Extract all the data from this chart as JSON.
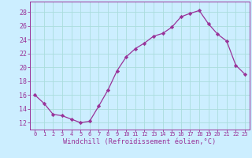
{
  "x": [
    0,
    1,
    2,
    3,
    4,
    5,
    6,
    7,
    8,
    9,
    10,
    11,
    12,
    13,
    14,
    15,
    16,
    17,
    18,
    19,
    20,
    21,
    22,
    23
  ],
  "y": [
    16.0,
    14.8,
    13.2,
    13.0,
    12.5,
    12.0,
    12.2,
    14.4,
    16.7,
    19.5,
    21.5,
    22.7,
    23.5,
    24.5,
    24.9,
    25.8,
    27.3,
    27.8,
    28.2,
    26.3,
    24.8,
    23.8,
    20.3,
    19.0
  ],
  "line_color": "#993399",
  "marker": "D",
  "marker_size": 2.2,
  "bg_color": "#cceeff",
  "grid_color": "#aadddd",
  "xlabel": "Windchill (Refroidissement éolien,°C)",
  "xlabel_color": "#993399",
  "tick_color": "#993399",
  "ylabel_ticks": [
    12,
    14,
    16,
    18,
    20,
    22,
    24,
    26,
    28
  ],
  "ylim": [
    11.0,
    29.5
  ],
  "xlim": [
    -0.5,
    23.5
  ],
  "xtick_fontsize": 5.0,
  "ytick_fontsize": 6.0,
  "xlabel_fontsize": 6.2
}
